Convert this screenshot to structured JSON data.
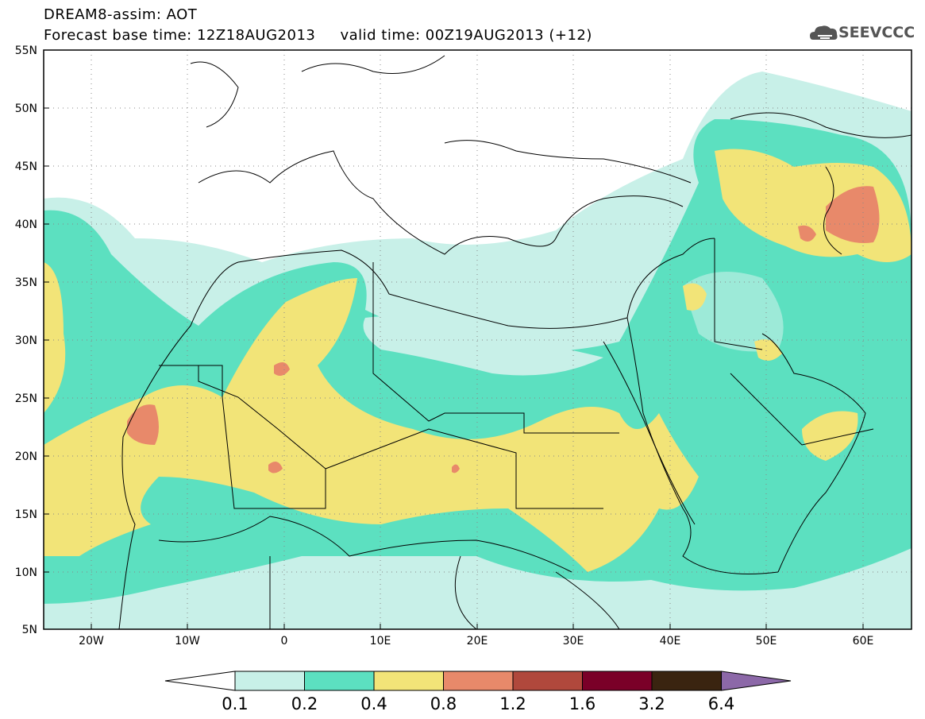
{
  "header": {
    "title": "DREAM8-assim: AOT",
    "subtitle": "Forecast base time: 12Z18AUG2013     valid time: 00Z19AUG2013 (+12)",
    "logo_text": "SEEVCCC"
  },
  "map": {
    "lat_ticks": [
      "55N",
      "50N",
      "45N",
      "40N",
      "35N",
      "30N",
      "25N",
      "20N",
      "15N",
      "10N",
      "5N"
    ],
    "lon_ticks": [
      "20W",
      "10W",
      "0",
      "10E",
      "20E",
      "30E",
      "40E",
      "50E",
      "60E"
    ],
    "lon_range": [
      -25,
      65
    ],
    "lat_range": [
      5,
      55
    ]
  },
  "legend": {
    "labels": [
      "0.1",
      "0.2",
      "0.4",
      "0.8",
      "1.2",
      "1.6",
      "3.2",
      "6.4"
    ],
    "colors": [
      "#ffffff",
      "#c8f0e8",
      "#5ce0c0",
      "#f2e478",
      "#e8896a",
      "#b0483c",
      "#7a0028",
      "#3a2410",
      "#8c68a8"
    ]
  }
}
